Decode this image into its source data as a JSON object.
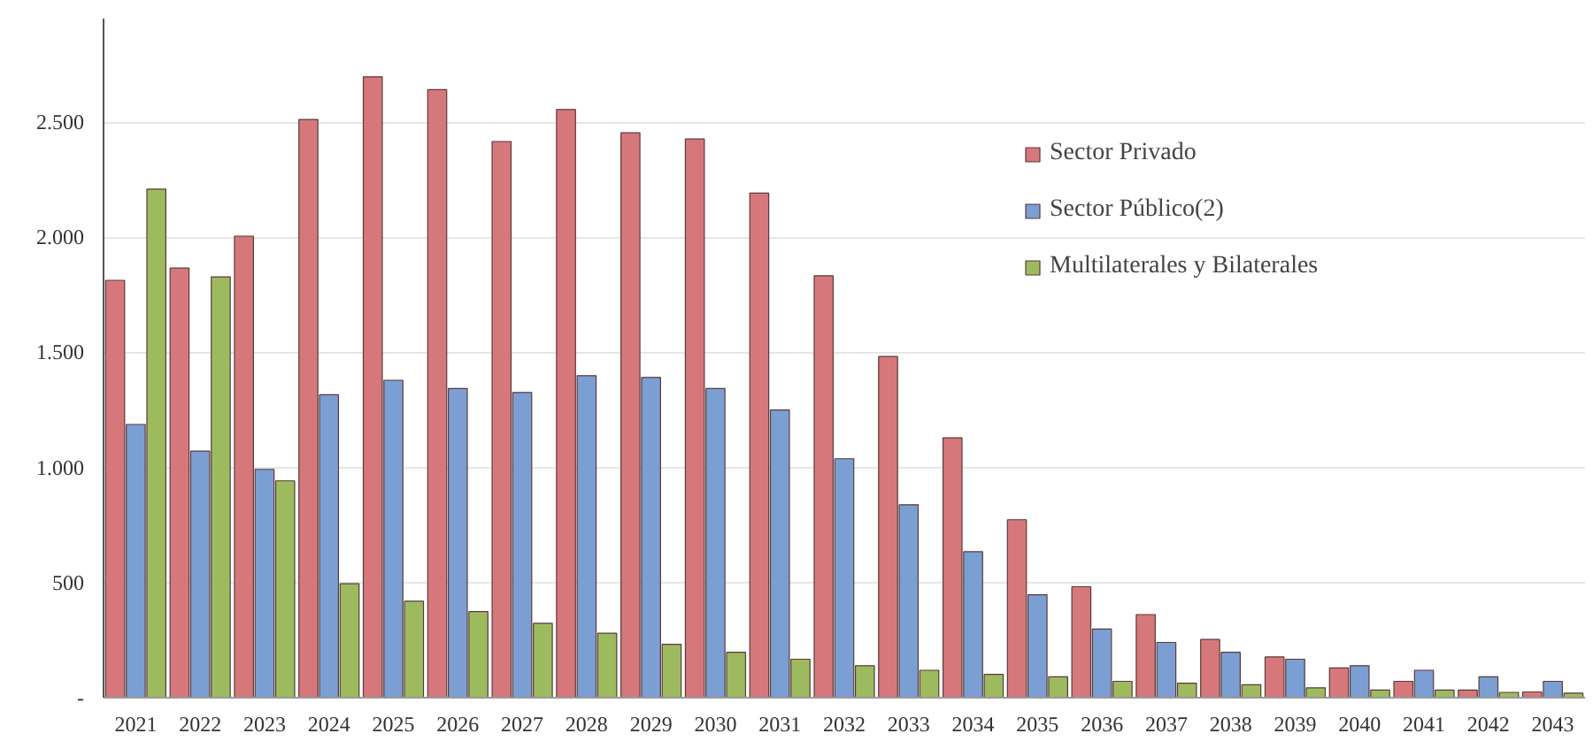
{
  "chart_data": {
    "type": "bar",
    "categories": [
      "2021",
      "2022",
      "2023",
      "2024",
      "2025",
      "2026",
      "2027",
      "2028",
      "2029",
      "2030",
      "2031",
      "2032",
      "2033",
      "2034",
      "2035",
      "2036",
      "2037",
      "2038",
      "2039",
      "2040",
      "2041",
      "2042",
      "2043"
    ],
    "series": [
      {
        "name": "Sector Privado",
        "color": "#d6787b",
        "values": [
          1813,
          1866,
          2005,
          2512,
          2697,
          2641,
          2416,
          2555,
          2454,
          2427,
          2192,
          1833,
          1482,
          1129,
          773,
          482,
          361,
          253,
          177,
          129,
          71,
          33,
          25
        ]
      },
      {
        "name": "Sector Público(2)",
        "color": "#7b9fd3",
        "values": [
          1187,
          1071,
          992,
          1316,
          1379,
          1343,
          1326,
          1399,
          1391,
          1343,
          1250,
          1038,
          838,
          634,
          447,
          298,
          240,
          197,
          167,
          139,
          119,
          91,
          71
        ]
      },
      {
        "name": "Multilaterales y Bilaterales",
        "color": "#9dbb5e",
        "values": [
          2209,
          1828,
          942,
          495,
          419,
          374,
          323,
          280,
          232,
          197,
          167,
          139,
          119,
          101,
          91,
          71,
          63,
          56,
          43,
          33,
          33,
          23,
          20
        ]
      }
    ],
    "ylim": [
      0,
      2950
    ],
    "yticks": [
      {
        "value": 0,
        "label": "-"
      },
      {
        "value": 500,
        "label": "500"
      },
      {
        "value": 1000,
        "label": "1.000"
      },
      {
        "value": 1500,
        "label": "1.500"
      },
      {
        "value": 2000,
        "label": "2.000"
      },
      {
        "value": 2500,
        "label": "2.500"
      }
    ],
    "grid": "y",
    "legend": "top right"
  }
}
